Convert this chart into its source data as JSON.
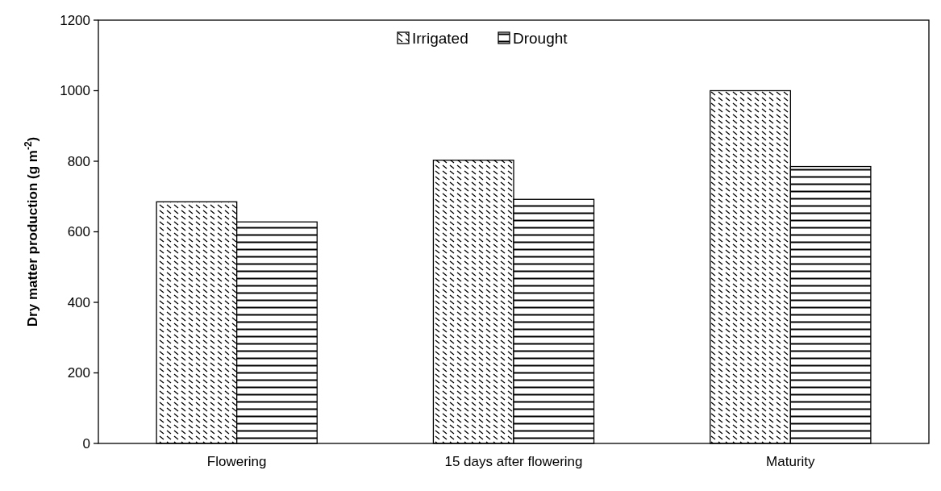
{
  "chart_data": {
    "type": "bar",
    "ylabel": "Dry matter production (g m$^{-2}$)",
    "categories": [
      "Flowering",
      "15 days after flowering",
      "Maturity"
    ],
    "series": [
      {
        "name": "Irrigated",
        "color": "#000000",
        "values": [
          685,
          803,
          1000
        ]
      },
      {
        "name": "Drought",
        "color": "#000000",
        "values": [
          628,
          692,
          785
        ]
      }
    ],
    "ylim": [
      0,
      1200
    ],
    "yticks": [
      0,
      200,
      400,
      600,
      800,
      1000,
      1200
    ],
    "grid": false,
    "legend": "top"
  }
}
